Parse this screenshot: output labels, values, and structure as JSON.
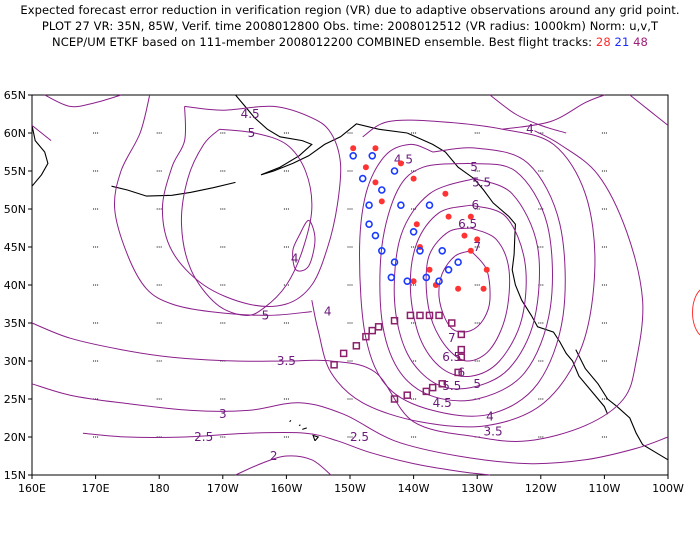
{
  "title": {
    "line1": "Expected forecast error reduction in verification region (VR) due to adaptive observations around any grid point.",
    "line2": "PLOT 27 VR: 35N, 85W, Verif. time 2008012800 Obs. time: 2008012512 (VR radius: 1000km) Norm: u,v,T",
    "line3_prefix": "NCEP/UM ETKF based on 111-member 2008012200 COMBINED ensemble.  Best flight tracks:",
    "track_red": "28",
    "track_blue": "21",
    "track_purple": "48"
  },
  "colors": {
    "contour": "#8b1f8b",
    "red_dots": "#ff3333",
    "blue_circles": "#1a3aff",
    "purple_squares": "#8b1f6b",
    "coast": "#000000"
  },
  "axes": {
    "lon_labels": [
      "160E",
      "170E",
      "180",
      "170W",
      "160W",
      "150W",
      "140W",
      "130W",
      "120W",
      "110W",
      "100W"
    ],
    "lat_labels": [
      "15N",
      "20N",
      "25N",
      "30N",
      "35N",
      "40N",
      "45N",
      "50N",
      "55N",
      "60N",
      "65N"
    ]
  },
  "contour_labels": [
    {
      "text": "4.5",
      "lon": -165.7,
      "lat": 62.5
    },
    {
      "text": "5",
      "lon": -165.5,
      "lat": 60.0
    },
    {
      "text": "4",
      "lon": -158.7,
      "lat": 43.5
    },
    {
      "text": "5",
      "lon": -163.3,
      "lat": 36.0
    },
    {
      "text": "4",
      "lon": -153.5,
      "lat": 36.5
    },
    {
      "text": "3.5",
      "lon": -160.0,
      "lat": 30.0
    },
    {
      "text": "3",
      "lon": -170.0,
      "lat": 23.0
    },
    {
      "text": "2.5",
      "lon": -173.0,
      "lat": 20.0
    },
    {
      "text": "2",
      "lon": -162.0,
      "lat": 17.5
    },
    {
      "text": "2.5",
      "lon": -148.5,
      "lat": 20.0
    },
    {
      "text": "4",
      "lon": -121.7,
      "lat": 60.5
    },
    {
      "text": "4.5",
      "lon": -141.6,
      "lat": 56.5
    },
    {
      "text": "5",
      "lon": -130.5,
      "lat": 55.5
    },
    {
      "text": "5.5",
      "lon": -129.3,
      "lat": 53.5
    },
    {
      "text": "6",
      "lon": -130.3,
      "lat": 50.5
    },
    {
      "text": "6.5",
      "lon": -131.5,
      "lat": 48.0
    },
    {
      "text": "7",
      "lon": -130.0,
      "lat": 45.0
    },
    {
      "text": "7",
      "lon": -134.0,
      "lat": 33.0
    },
    {
      "text": "6.5",
      "lon": -134.0,
      "lat": 30.5
    },
    {
      "text": "6",
      "lon": -132.5,
      "lat": 28.5
    },
    {
      "text": "5.5",
      "lon": -134.0,
      "lat": 26.7
    },
    {
      "text": "5",
      "lon": -130.0,
      "lat": 27.0
    },
    {
      "text": "4.5",
      "lon": -135.5,
      "lat": 24.5
    },
    {
      "text": "4",
      "lon": -128.0,
      "lat": 22.7
    },
    {
      "text": "3.5",
      "lon": -127.5,
      "lat": 20.7
    }
  ],
  "track_red": [
    [
      -149.5,
      58.0
    ],
    [
      -146.0,
      58.0
    ],
    [
      -142.0,
      56.0
    ],
    [
      -147.5,
      55.5
    ],
    [
      -146.0,
      53.5
    ],
    [
      -145.0,
      51.0
    ],
    [
      -140.0,
      54.0
    ],
    [
      -135.0,
      52.0
    ],
    [
      -139.5,
      48.0
    ],
    [
      -139.0,
      45.0
    ],
    [
      -134.5,
      49.0
    ],
    [
      -131.0,
      49.0
    ],
    [
      -132.0,
      46.5
    ],
    [
      -131.0,
      44.5
    ],
    [
      -137.5,
      42.0
    ],
    [
      -140.0,
      40.5
    ],
    [
      -136.5,
      40.0
    ],
    [
      -133.0,
      39.5
    ],
    [
      -129.0,
      39.5
    ],
    [
      -128.5,
      42.0
    ],
    [
      -130.0,
      46.0
    ]
  ],
  "track_blue": [
    [
      -149.5,
      57.0
    ],
    [
      -146.5,
      57.0
    ],
    [
      -143.0,
      55.0
    ],
    [
      -148.0,
      54.0
    ],
    [
      -145.0,
      52.5
    ],
    [
      -147.0,
      50.5
    ],
    [
      -147.0,
      48.0
    ],
    [
      -142.0,
      50.5
    ],
    [
      -146.0,
      46.5
    ],
    [
      -145.0,
      44.5
    ],
    [
      -143.0,
      43.0
    ],
    [
      -143.5,
      41.0
    ],
    [
      -141.0,
      40.5
    ],
    [
      -138.0,
      41.0
    ],
    [
      -136.0,
      40.5
    ],
    [
      -135.5,
      44.5
    ],
    [
      -134.5,
      42.0
    ],
    [
      -137.5,
      50.5
    ],
    [
      -140.0,
      47.0
    ],
    [
      -133.0,
      43.0
    ],
    [
      -139.0,
      44.5
    ]
  ],
  "track_purple": [
    [
      -152.5,
      29.5
    ],
    [
      -151.0,
      31.0
    ],
    [
      -149.0,
      32.0
    ],
    [
      -147.5,
      33.2
    ],
    [
      -146.5,
      34.0
    ],
    [
      -145.5,
      34.5
    ],
    [
      -143.0,
      35.3
    ],
    [
      -140.5,
      36.0
    ],
    [
      -139.0,
      36.0
    ],
    [
      -137.5,
      36.0
    ],
    [
      -136.0,
      36.0
    ],
    [
      -134.0,
      35.0
    ],
    [
      -132.5,
      33.5
    ],
    [
      -132.5,
      31.5
    ],
    [
      -132.5,
      30.5
    ],
    [
      -133.0,
      28.5
    ],
    [
      -135.5,
      27.0
    ],
    [
      -137.0,
      26.5
    ],
    [
      -138.0,
      26.0
    ],
    [
      -141.0,
      25.5
    ],
    [
      -143.0,
      25.0
    ]
  ],
  "contour_paths": {
    "c7": [
      [
        -131.0,
        44.5
      ],
      [
        -128.5,
        42.0
      ],
      [
        -128.0,
        38.0
      ],
      [
        -129.0,
        35.5
      ],
      [
        -131.0,
        34.0
      ],
      [
        -133.5,
        34.0
      ],
      [
        -135.0,
        35.5
      ],
      [
        -136.0,
        38.5
      ],
      [
        -135.5,
        41.5
      ],
      [
        -133.5,
        43.8
      ],
      [
        -131.0,
        44.5
      ]
    ],
    "c65": [
      [
        -131.0,
        47.5
      ],
      [
        -127.0,
        46.0
      ],
      [
        -125.0,
        42.0
      ],
      [
        -125.5,
        36.0
      ],
      [
        -128.0,
        31.5
      ],
      [
        -131.5,
        30.0
      ],
      [
        -134.5,
        31.5
      ],
      [
        -137.0,
        35.0
      ],
      [
        -138.0,
        39.5
      ],
      [
        -137.5,
        44.0
      ],
      [
        -134.5,
        47.0
      ],
      [
        -131.0,
        47.5
      ]
    ],
    "c6": [
      [
        -131.0,
        50.5
      ],
      [
        -125.5,
        49.0
      ],
      [
        -122.5,
        43.0
      ],
      [
        -123.0,
        35.5
      ],
      [
        -126.5,
        30.0
      ],
      [
        -131.0,
        28.0
      ],
      [
        -135.5,
        29.0
      ],
      [
        -139.0,
        33.0
      ],
      [
        -140.5,
        39.5
      ],
      [
        -139.5,
        45.5
      ],
      [
        -136.0,
        49.5
      ],
      [
        -131.0,
        50.5
      ]
    ],
    "c55": [
      [
        -130.5,
        54.0
      ],
      [
        -124.5,
        52.0
      ],
      [
        -120.5,
        45.0
      ],
      [
        -121.0,
        35.5
      ],
      [
        -125.0,
        29.0
      ],
      [
        -131.0,
        26.5
      ],
      [
        -136.5,
        27.0
      ],
      [
        -141.0,
        31.0
      ],
      [
        -143.0,
        38.0
      ],
      [
        -142.0,
        46.5
      ],
      [
        -137.5,
        52.0
      ],
      [
        -130.5,
        54.0
      ]
    ],
    "c5": [
      [
        -131.5,
        56.0
      ],
      [
        -124.0,
        55.0
      ],
      [
        -119.0,
        48.0
      ],
      [
        -118.5,
        37.0
      ],
      [
        -122.5,
        28.5
      ],
      [
        -130.0,
        25.0
      ],
      [
        -137.5,
        25.5
      ],
      [
        -142.5,
        29.0
      ],
      [
        -145.0,
        35.5
      ],
      [
        -145.0,
        45.0
      ],
      [
        -142.5,
        52.5
      ],
      [
        -138.5,
        55.5
      ],
      [
        -131.5,
        56.0
      ]
    ],
    "c45": [
      [
        -137.0,
        57.5
      ],
      [
        -130.0,
        58.0
      ],
      [
        -122.0,
        56.0
      ],
      [
        -117.0,
        48.0
      ],
      [
        -116.5,
        36.0
      ],
      [
        -120.5,
        27.0
      ],
      [
        -128.0,
        23.0
      ],
      [
        -137.0,
        23.5
      ],
      [
        -144.0,
        26.5
      ],
      [
        -147.5,
        33.0
      ],
      [
        -148.5,
        44.0
      ],
      [
        -147.5,
        52.0
      ],
      [
        -144.5,
        57.0
      ],
      [
        -140.5,
        58.5
      ],
      [
        -137.0,
        57.5
      ]
    ],
    "c4right": [
      [
        -148.0,
        59.5
      ],
      [
        -144.0,
        61.5
      ],
      [
        -136.0,
        61.5
      ],
      [
        -126.0,
        60.5
      ],
      [
        -118.0,
        58.5
      ],
      [
        -113.0,
        52.0
      ],
      [
        -111.5,
        42.5
      ],
      [
        -113.5,
        32.0
      ],
      [
        -119.5,
        24.5
      ],
      [
        -128.5,
        21.5
      ],
      [
        -139.0,
        22.0
      ],
      [
        -148.0,
        24.5
      ],
      [
        -153.0,
        28.5
      ],
      [
        -155.0,
        34.0
      ],
      [
        -156.0,
        38.0
      ]
    ],
    "c45left": [
      [
        -176.0,
        63.5
      ],
      [
        -170.0,
        63.0
      ],
      [
        -162.0,
        63.5
      ],
      [
        -156.0,
        62.0
      ],
      [
        -153.0,
        60.0
      ],
      [
        -151.5,
        56.0
      ],
      [
        -152.0,
        50.5
      ],
      [
        -153.5,
        45.0
      ],
      [
        -156.0,
        40.0
      ],
      [
        -160.0,
        37.5
      ],
      [
        -166.0,
        37.5
      ],
      [
        -173.0,
        40.0
      ],
      [
        -178.0,
        44.5
      ],
      [
        -179.5,
        50.0
      ],
      [
        -178.0,
        55.5
      ],
      [
        -176.0,
        59.0
      ],
      [
        -176.0,
        63.5
      ]
    ],
    "c5left": [
      [
        -170.5,
        60.5
      ],
      [
        -165.0,
        60.0
      ],
      [
        -160.0,
        58.5
      ],
      [
        -157.0,
        55.0
      ],
      [
        -156.0,
        50.0
      ],
      [
        -157.5,
        44.5
      ],
      [
        -160.0,
        40.0
      ],
      [
        -163.5,
        37.0
      ],
      [
        -166.5,
        36.0
      ],
      [
        -171.0,
        37.5
      ],
      [
        -175.0,
        42.0
      ],
      [
        -176.5,
        48.0
      ],
      [
        -175.5,
        54.0
      ],
      [
        -173.0,
        58.5
      ],
      [
        -170.5,
        60.5
      ]
    ],
    "c4small": [
      [
        -158.0,
        46.5
      ],
      [
        -156.5,
        48.5
      ],
      [
        -155.5,
        46.0
      ],
      [
        -156.5,
        42.5
      ],
      [
        -158.5,
        42.0
      ],
      [
        -159.0,
        44.5
      ],
      [
        -158.0,
        46.5
      ]
    ],
    "c4top": [
      [
        -126.0,
        60.5
      ],
      [
        -118.5,
        61.5
      ],
      [
        -113.0,
        64.0
      ],
      [
        -110.0,
        65.0
      ]
    ],
    "c4left_outer": [
      [
        178.5,
        65.0
      ],
      [
        177.0,
        60.0
      ],
      [
        174.0,
        55.0
      ],
      [
        173.0,
        50.0
      ],
      [
        175.0,
        44.0
      ],
      [
        178.0,
        39.5
      ],
      [
        -178.0,
        37.5
      ],
      [
        -172.0,
        36.5
      ],
      [
        -163.0,
        36.0
      ],
      [
        -156.0,
        36.5
      ]
    ],
    "c35": [
      [
        160.0,
        35.0
      ],
      [
        166.0,
        33.0
      ],
      [
        174.0,
        31.5
      ],
      [
        -178.0,
        30.5
      ],
      [
        -168.0,
        30.0
      ],
      [
        -160.0,
        30.0
      ],
      [
        -153.0,
        30.0
      ],
      [
        -146.0,
        28.5
      ],
      [
        -140.0,
        22.0
      ],
      [
        -130.0,
        20.0
      ],
      [
        -122.0,
        19.5
      ],
      [
        -113.0,
        21.5
      ],
      [
        -107.0,
        25.0
      ],
      [
        -105.0,
        30.0
      ],
      [
        -104.0,
        38.0
      ],
      [
        -106.5,
        47.0
      ],
      [
        -111.0,
        54.5
      ],
      [
        -117.0,
        58.5
      ],
      [
        -121.0,
        60.3
      ]
    ],
    "c3": [
      [
        160.0,
        27.0
      ],
      [
        166.0,
        25.5
      ],
      [
        174.0,
        24.5
      ],
      [
        -175.0,
        23.5
      ],
      [
        -166.0,
        23.5
      ],
      [
        -158.0,
        24.5
      ],
      [
        -151.0,
        23.0
      ],
      [
        -143.0,
        19.5
      ],
      [
        -133.0,
        17.5
      ],
      [
        -122.0,
        16.5
      ],
      [
        -113.0,
        17.0
      ],
      [
        -105.0,
        18.5
      ],
      [
        -100.0,
        20.0
      ]
    ],
    "c25": [
      [
        168.0,
        20.5
      ],
      [
        175.0,
        20.0
      ],
      [
        -176.0,
        20.0
      ],
      [
        -166.0,
        20.5
      ],
      [
        -157.0,
        20.5
      ],
      [
        -152.0,
        19.5
      ],
      [
        -147.0,
        18.0
      ],
      [
        -140.0,
        16.5
      ],
      [
        -133.0,
        15.5
      ],
      [
        -128.0,
        15.0
      ]
    ],
    "c2": [
      [
        -168.0,
        15.0
      ],
      [
        -164.0,
        16.5
      ],
      [
        -160.0,
        17.5
      ],
      [
        -156.0,
        17.0
      ],
      [
        -153.0,
        15.0
      ]
    ],
    "c45top": [
      [
        162.0,
        65.0
      ],
      [
        166.0,
        63.5
      ],
      [
        170.0,
        64.0
      ],
      [
        174.0,
        65.0
      ]
    ],
    "c4topleft": [
      [
        160.0,
        61.0
      ],
      [
        163.0,
        59.0
      ]
    ],
    "c4topright": [
      [
        -128.0,
        65.0
      ],
      [
        -124.0,
        62.5
      ],
      [
        -120.0,
        61.0
      ],
      [
        -116.0,
        60.0
      ]
    ],
    "c35right": [
      [
        -100.0,
        61.0
      ],
      [
        -103.0,
        63.0
      ],
      [
        -106.0,
        65.0
      ]
    ]
  },
  "coastlines": {
    "alaska": [
      [
        -141.0,
        60.0
      ],
      [
        -145.5,
        60.5
      ],
      [
        -149.0,
        61.2
      ],
      [
        -151.5,
        59.5
      ],
      [
        -154.0,
        58.5
      ],
      [
        -156.5,
        57.0
      ],
      [
        -159.0,
        56.0
      ],
      [
        -162.0,
        55.0
      ],
      [
        -164.0,
        54.5
      ],
      [
        -161.0,
        55.5
      ],
      [
        -158.0,
        57.0
      ],
      [
        -156.0,
        58.5
      ],
      [
        -157.5,
        59.0
      ],
      [
        -161.0,
        59.5
      ],
      [
        -163.0,
        60.5
      ],
      [
        -165.0,
        62.0
      ],
      [
        -166.5,
        63.5
      ],
      [
        -168.0,
        65.0
      ]
    ],
    "aleutians": [
      [
        -168.0,
        53.5
      ],
      [
        -171.5,
        52.8
      ],
      [
        -175.0,
        52.2
      ],
      [
        -178.0,
        51.8
      ],
      [
        178.0,
        51.7
      ],
      [
        175.0,
        52.5
      ],
      [
        172.5,
        53.0
      ]
    ],
    "pnw": [
      [
        -141.0,
        60.0
      ],
      [
        -137.0,
        58.5
      ],
      [
        -135.0,
        57.5
      ],
      [
        -133.0,
        55.5
      ],
      [
        -130.5,
        54.0
      ],
      [
        -129.0,
        52.5
      ],
      [
        -127.5,
        50.8
      ],
      [
        -125.0,
        49.0
      ],
      [
        -124.0,
        48.0
      ],
      [
        -124.1,
        46.0
      ],
      [
        -124.2,
        44.0
      ],
      [
        -124.5,
        42.0
      ],
      [
        -124.0,
        40.0
      ],
      [
        -123.0,
        38.0
      ],
      [
        -121.5,
        36.0
      ],
      [
        -120.5,
        34.5
      ],
      [
        -118.0,
        33.8
      ],
      [
        -117.0,
        32.5
      ],
      [
        -116.0,
        31.0
      ],
      [
        -115.0,
        30.0
      ],
      [
        -114.0,
        28.0
      ],
      [
        -112.0,
        26.0
      ],
      [
        -110.0,
        24.0
      ],
      [
        -109.5,
        23.0
      ]
    ],
    "baja_inner": [
      [
        -114.5,
        31.5
      ],
      [
        -113.0,
        29.0
      ],
      [
        -111.0,
        27.0
      ],
      [
        -109.5,
        25.0
      ],
      [
        -108.0,
        24.0
      ],
      [
        -106.0,
        22.5
      ],
      [
        -105.0,
        20.5
      ],
      [
        -104.0,
        19.0
      ],
      [
        -102.0,
        18.0
      ],
      [
        -100.0,
        17.0
      ]
    ],
    "kamchatka": [
      [
        160.0,
        61.0
      ],
      [
        160.5,
        59.0
      ],
      [
        162.0,
        57.5
      ],
      [
        162.5,
        56.0
      ],
      [
        161.5,
        54.5
      ],
      [
        160.0,
        53.0
      ]
    ],
    "hawaii": [
      [
        -155.5,
        19.5
      ],
      [
        -155.8,
        20.2
      ],
      [
        -155.0,
        20.0
      ],
      [
        -155.5,
        19.5
      ]
    ],
    "hawaii2": [
      [
        -157.5,
        21.0
      ],
      [
        -156.8,
        21.2
      ]
    ],
    "hawaii3": [
      [
        -159.5,
        22.0
      ],
      [
        -159.3,
        22.2
      ]
    ],
    "hawaii4": [
      [
        -158.0,
        21.5
      ],
      [
        -157.8,
        21.6
      ]
    ]
  },
  "grid_dots": "dotted"
}
